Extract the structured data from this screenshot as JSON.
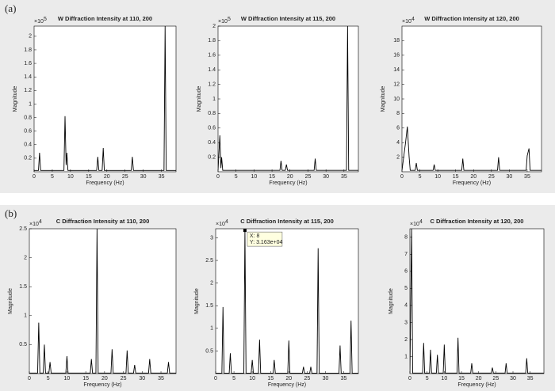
{
  "panels": [
    "(a)",
    "(b)"
  ],
  "chart_data": [
    {
      "type": "line",
      "title": "W Diffraction Intensity at 110, 200",
      "y_multiplier": "×10",
      "y_exponent": "5",
      "xlabel": "Frequency (Hz)",
      "ylabel": "Magnitude",
      "color": "#000000",
      "xlim": [
        0,
        39
      ],
      "xticks": [
        0,
        5,
        10,
        15,
        20,
        25,
        30,
        35
      ],
      "ylim": [
        0,
        2.15
      ],
      "yticks": [
        0.2,
        0.4,
        0.6,
        0.8,
        1,
        1.2,
        1.4,
        1.6,
        1.8,
        2
      ],
      "x": [
        0,
        1.2,
        1.5,
        1.8,
        8.2,
        8.5,
        8.8,
        9,
        9.3,
        17.2,
        17.5,
        17.8,
        18.7,
        19,
        19.3,
        26.7,
        27,
        27.3,
        35.7,
        36,
        36.3,
        39
      ],
      "values": [
        0.02,
        0.02,
        0.28,
        0.02,
        0.02,
        0.82,
        0.1,
        0.28,
        0.02,
        0.02,
        0.22,
        0.02,
        0.02,
        0.35,
        0.02,
        0.02,
        0.22,
        0.02,
        0.02,
        2.15,
        0.02,
        0.02
      ]
    },
    {
      "type": "line",
      "title": "W Diffraction Intensity at 115, 200",
      "y_multiplier": "×10",
      "y_exponent": "5",
      "xlabel": "Frequency (Hz)",
      "ylabel": "Magnitude",
      "color": "#000000",
      "xlim": [
        0,
        39
      ],
      "xticks": [
        0,
        5,
        10,
        15,
        20,
        25,
        30,
        35
      ],
      "ylim": [
        0,
        2
      ],
      "yticks": [
        0.2,
        0.4,
        0.6,
        0.8,
        1,
        1.2,
        1.4,
        1.6,
        1.8,
        2
      ],
      "x": [
        0,
        0.5,
        0.8,
        1,
        1.3,
        17.2,
        17.5,
        17.8,
        18.7,
        19,
        19.3,
        26.7,
        27,
        27.3,
        35.7,
        36,
        36.3,
        39
      ],
      "values": [
        0.02,
        0.5,
        0.05,
        0.2,
        0.02,
        0.02,
        0.15,
        0.02,
        0.02,
        0.1,
        0.02,
        0.02,
        0.18,
        0.02,
        0.02,
        2,
        0.02,
        0.02
      ]
    },
    {
      "type": "line",
      "title": "W Diffraction Intensity at 120, 200",
      "y_multiplier": "×10",
      "y_exponent": "4",
      "xlabel": "Frequency (Hz)",
      "ylabel": "Magnitude",
      "color": "#000000",
      "xlim": [
        0,
        39
      ],
      "xticks": [
        0,
        5,
        10,
        15,
        20,
        25,
        30,
        35
      ],
      "ylim": [
        0,
        20
      ],
      "yticks": [
        2,
        4,
        6,
        8,
        10,
        12,
        14,
        16,
        18
      ],
      "x": [
        0,
        1,
        1.5,
        2,
        2.3,
        3.7,
        4,
        4.3,
        8.7,
        9,
        9.3,
        16.7,
        17,
        17.3,
        26.7,
        27,
        27.3,
        34.7,
        35,
        35.5,
        35.8,
        39
      ],
      "values": [
        0.2,
        4,
        6.2,
        2,
        0.2,
        0.2,
        1.2,
        0.2,
        0.2,
        1,
        0.2,
        0.2,
        1.8,
        0.2,
        0.2,
        2,
        0.2,
        0.2,
        2.2,
        3.2,
        0.2,
        0.2
      ]
    },
    {
      "type": "line",
      "title": "C Diffraction Intensity at 110, 200",
      "y_multiplier": "×10",
      "y_exponent": "4",
      "xlabel": "Frequency (Hz)",
      "ylabel": "Magnitude",
      "color": "#000000",
      "xlim": [
        0,
        39
      ],
      "xticks": [
        0,
        5,
        10,
        15,
        20,
        25,
        30,
        35
      ],
      "ylim": [
        0,
        2.5
      ],
      "yticks": [
        0.5,
        1,
        1.5,
        2,
        2.5
      ],
      "x": [
        0,
        2.2,
        2.5,
        2.8,
        3.7,
        4,
        4.3,
        5.2,
        5.5,
        5.8,
        9.7,
        10,
        10.3,
        16.2,
        16.5,
        16.8,
        17.7,
        18,
        18.3,
        21.7,
        22,
        22.3,
        25.7,
        26,
        26.3,
        27.7,
        28,
        28.3,
        31.7,
        32,
        32.3,
        36.7,
        37,
        37.3,
        39
      ],
      "values": [
        0.01,
        0.01,
        0.88,
        0.01,
        0.01,
        0.5,
        0.01,
        0.01,
        0.2,
        0.01,
        0.01,
        0.3,
        0.01,
        0.01,
        0.25,
        0.01,
        0.01,
        2.5,
        0.01,
        0.01,
        0.42,
        0.01,
        0.01,
        0.4,
        0.01,
        0.01,
        0.15,
        0.01,
        0.01,
        0.25,
        0.01,
        0.01,
        0.2,
        0.01,
        0.01
      ]
    },
    {
      "type": "line",
      "title": "C Diffraction Intensity at 115, 200",
      "y_multiplier": "×10",
      "y_exponent": "4",
      "xlabel": "Frequency (Hz)",
      "ylabel": "Magnitude",
      "color": "#000000",
      "xlim": [
        0,
        39
      ],
      "xticks": [
        0,
        5,
        10,
        15,
        20,
        25,
        30,
        35
      ],
      "ylim": [
        0,
        3.2
      ],
      "yticks": [
        0.5,
        1,
        1.5,
        2,
        2.5,
        3
      ],
      "annotations": [
        "X: 8",
        "Y: 3.163e+04"
      ],
      "x": [
        0,
        1.7,
        2,
        2.3,
        3.7,
        4,
        4.3,
        7.7,
        8,
        8.3,
        9.7,
        10,
        10.3,
        11.7,
        12,
        12.3,
        15.7,
        16,
        16.3,
        19.7,
        20,
        20.3,
        23.7,
        24,
        24.3,
        25.7,
        26,
        26.3,
        27.7,
        28,
        28.3,
        33.7,
        34,
        34.3,
        36.7,
        37,
        37.3,
        39
      ],
      "values": [
        0.01,
        0.01,
        1.47,
        0.01,
        0.01,
        0.45,
        0.01,
        0.01,
        3.163,
        0.01,
        0.01,
        0.3,
        0.01,
        0.01,
        0.75,
        0.01,
        0.01,
        0.3,
        0.01,
        0.01,
        0.73,
        0.01,
        0.01,
        0.15,
        0.01,
        0.01,
        0.15,
        0.01,
        0.01,
        2.77,
        0.01,
        0.01,
        0.62,
        0.01,
        0.01,
        1.17,
        0.01,
        0.01
      ]
    },
    {
      "type": "line",
      "title": "C Diffraction Intensity at 120, 200",
      "y_multiplier": "×10",
      "y_exponent": "4",
      "xlabel": "Frequency (Hz)",
      "ylabel": "Magnitude",
      "color": "#000000",
      "xlim": [
        0,
        39
      ],
      "xticks": [
        0,
        5,
        10,
        15,
        20,
        25,
        30,
        35
      ],
      "ylim": [
        0,
        8.5
      ],
      "yticks": [
        1,
        2,
        3,
        4,
        5,
        6,
        7,
        8
      ],
      "x": [
        0,
        0.5,
        0.8,
        3.7,
        4,
        4.3,
        5.7,
        6,
        6.3,
        7.7,
        8,
        8.3,
        9.7,
        10,
        10.3,
        13.7,
        14,
        14.3,
        17.7,
        18,
        18.3,
        23.7,
        24,
        24.3,
        27.7,
        28,
        28.3,
        33.7,
        34,
        34.3,
        39
      ],
      "values": [
        0.03,
        8.5,
        0.03,
        0.03,
        1.8,
        0.03,
        0.03,
        1.4,
        0.03,
        0.03,
        1.1,
        0.03,
        0.03,
        1.7,
        0.03,
        0.03,
        2.1,
        0.03,
        0.03,
        0.6,
        0.03,
        0.03,
        0.35,
        0.03,
        0.03,
        0.6,
        0.03,
        0.03,
        0.9,
        0.03,
        0.03
      ]
    }
  ]
}
